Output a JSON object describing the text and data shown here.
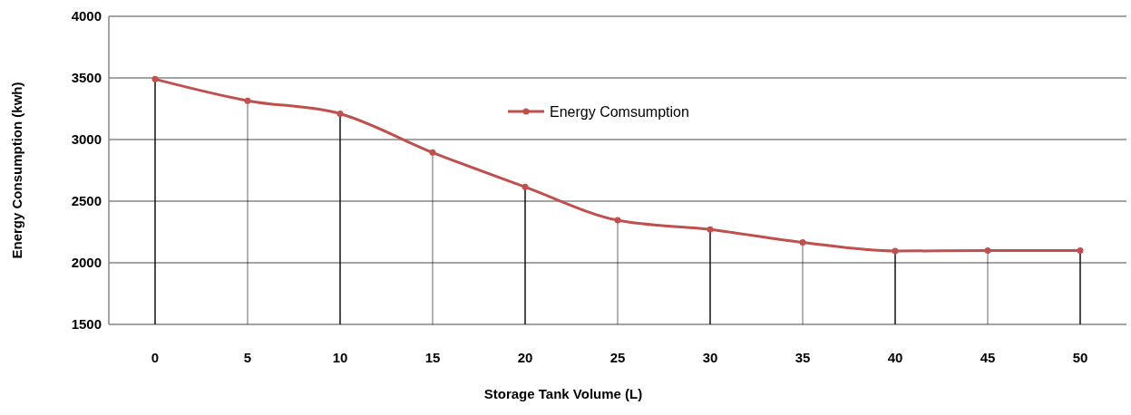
{
  "chart_data": {
    "type": "line",
    "xlabel": "Storage Tank Volume (L)",
    "ylabel": "Energy Consumption (kwh)",
    "categories": [
      "0",
      "5",
      "10",
      "15",
      "20",
      "25",
      "30",
      "35",
      "40",
      "45",
      "50"
    ],
    "series": [
      {
        "type": "lollipop",
        "color": "#c0504d",
        "values": [
          3490,
          3315,
          3210,
          2895,
          2615,
          2345,
          2270,
          2165,
          2095,
          2100,
          2100
        ]
      },
      {
        "name": "Energy Comsumption",
        "color": "#c0504d",
        "values": [
          3490,
          3315,
          3210,
          2895,
          2615,
          2345,
          2270,
          2165,
          2095,
          2100,
          2100
        ]
      }
    ],
    "ylim": [
      1500,
      4000
    ],
    "yticks": [
      1500,
      2000,
      2500,
      3000,
      3500,
      4000
    ],
    "grid": "y",
    "legend": "top",
    "line_style": "solid"
  }
}
